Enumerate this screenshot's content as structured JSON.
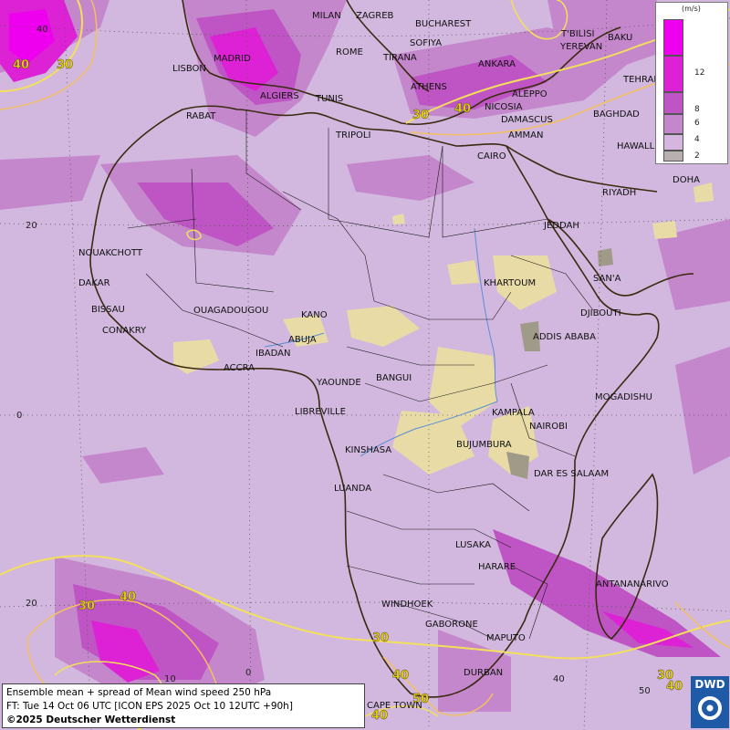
{
  "caption": {
    "line1": "Ensemble mean + spread of Mean wind speed 250 hPa",
    "line2": "FT: Tue 14 Oct 06 UTC [ICON EPS 2025 Oct 10 12UTC +90h]",
    "line3": "©2025 Deutscher Wetterdienst"
  },
  "logo_text": "DWD",
  "legend": {
    "unit": "(m/s)",
    "levels": [
      {
        "label": "",
        "color": "#ee00ee"
      },
      {
        "label": "12",
        "color": "#dd22d6"
      },
      {
        "label": "8",
        "color": "#bf55c4"
      },
      {
        "label": "6",
        "color": "#c587cc"
      },
      {
        "label": "4",
        "color": "#d4b6de"
      },
      {
        "label": "2",
        "color": "#b8b0b0"
      }
    ]
  },
  "grid_labels": {
    "lat": [
      "40",
      "20",
      "0",
      "20"
    ],
    "lon": [
      "0",
      "10",
      "40",
      "50"
    ]
  },
  "contour_labels": [
    "30",
    "40",
    "40",
    "30",
    "30",
    "40",
    "30",
    "40",
    "30",
    "40",
    "50",
    "40"
  ],
  "cities": [
    "MILAN",
    "ZAGREB",
    "BUCHAREST",
    "T'BILISI",
    "BAKU",
    "YEREVAN",
    "TEHRAN",
    "MADRID",
    "ROME",
    "SOFIYA",
    "LISBON",
    "TIRANA",
    "ANKARA",
    "ALGIERS",
    "TUNIS",
    "ATHENS",
    "NICOSIA",
    "ALEPPO",
    "BAGHDAD",
    "RABAT",
    "DAMASCUS",
    "TRIPOLI",
    "AMMAN",
    "HAWALLI",
    "CAIRO",
    "DOHA",
    "RIYADH",
    "NOUAKCHOTT",
    "JEDDAH",
    "DAKAR",
    "KHARTOUM",
    "SAN'A",
    "BISSAU",
    "OUAGADOUGOU",
    "KANO",
    "DJIBOUTI",
    "CONAKRY",
    "ABUJA",
    "ADDIS ABABA",
    "IBADAN",
    "ACCRA",
    "BANGUI",
    "YAOUNDE",
    "MOGADISHU",
    "LIBREVILLE",
    "KAMPALA",
    "NAIROBI",
    "KINSHASA",
    "BUJUMBURA",
    "DAR ES SALAAM",
    "LUANDA",
    "LUSAKA",
    "HARARE",
    "ANTANANARIVO",
    "WINDHOEK",
    "GABORONE",
    "MAPUTO",
    "DURBAN",
    "CAPE TOWN"
  ]
}
